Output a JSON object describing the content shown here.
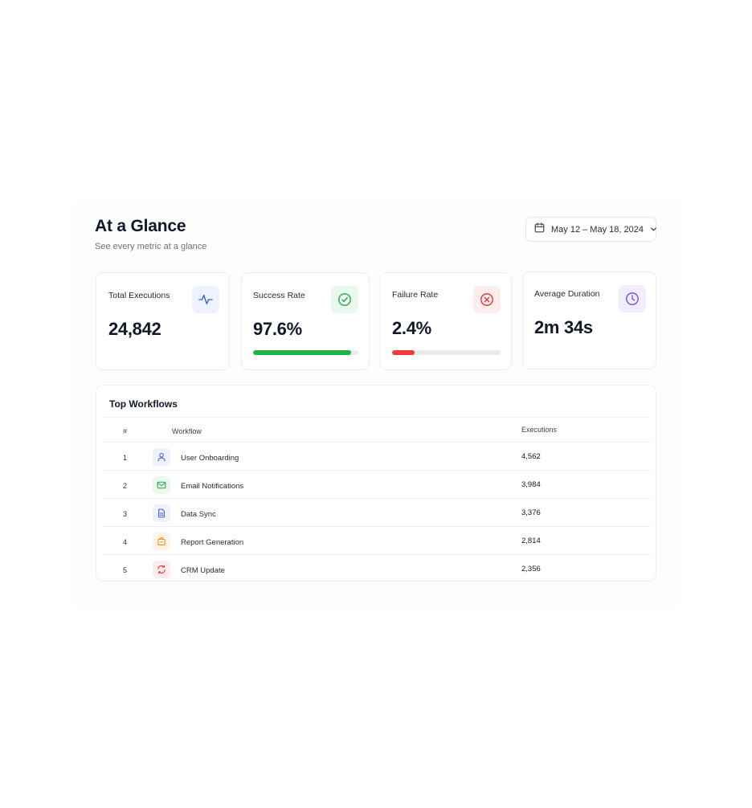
{
  "header": {
    "title": "At a Glance",
    "subtitle": "See every metric at a glance"
  },
  "date_range": {
    "label": "May 12 – May 18, 2024",
    "icon": "calendar-icon"
  },
  "metrics": [
    {
      "label": "Total Executions",
      "value": "24,842",
      "icon": "activity-icon",
      "accent": "#3b5bdb",
      "icon_bg": "#eef2fd"
    },
    {
      "label": "Success Rate",
      "value": "97.6%",
      "icon": "check-circle-icon",
      "accent": "#22a447",
      "icon_bg": "#ebf8ee",
      "progress": 0.93,
      "progress_color": "#22b04b"
    },
    {
      "label": "Failure Rate",
      "value": "2.4%",
      "icon": "x-circle-icon",
      "accent": "#e03131",
      "icon_bg": "#fdecec",
      "progress": 0.21,
      "progress_color": "#ef3b3b"
    },
    {
      "label": "Average Duration",
      "value": "2m 34s",
      "icon": "clock-icon",
      "accent": "#7048e8",
      "icon_bg": "#f1edfd"
    }
  ],
  "top_workflows": {
    "title": "Top Workflows",
    "columns": {
      "num": "#",
      "workflow": "Workflow",
      "executions": "Executions"
    },
    "rows": [
      {
        "num": "1",
        "name": "User Onboarding",
        "executions": "4,562",
        "icon": "user-icon",
        "color": "#3b5bdb",
        "bg": "#eef2fd"
      },
      {
        "num": "2",
        "name": "Email Notifications",
        "executions": "3,984",
        "icon": "mail-icon",
        "color": "#22a447",
        "bg": "#ebf8ee"
      },
      {
        "num": "3",
        "name": "Data Sync",
        "executions": "3,376",
        "icon": "document-icon",
        "color": "#3b5bdb",
        "bg": "#eef2fd"
      },
      {
        "num": "4",
        "name": "Report Generation",
        "executions": "2,814",
        "icon": "briefcase-icon",
        "color": "#f08c00",
        "bg": "#fff3e6"
      },
      {
        "num": "5",
        "name": "CRM Update",
        "executions": "2,356",
        "icon": "refresh-icon",
        "color": "#e03131",
        "bg": "#fdecec"
      }
    ]
  }
}
